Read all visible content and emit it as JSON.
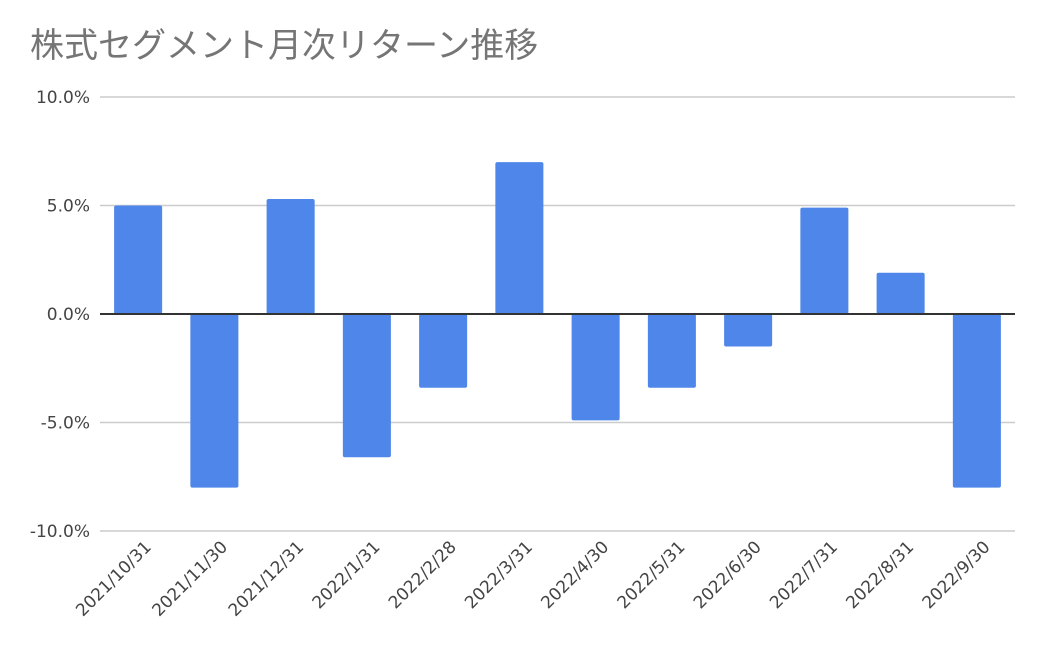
{
  "chart_data": {
    "type": "bar",
    "title": "株式セグメント月次リターン推移",
    "xlabel": "",
    "ylabel": "",
    "categories": [
      "2021/10/31",
      "2021/11/30",
      "2021/12/31",
      "2022/1/31",
      "2022/2/28",
      "2022/3/31",
      "2022/4/30",
      "2022/5/31",
      "2022/6/30",
      "2022/7/31",
      "2022/8/31",
      "2022/9/30"
    ],
    "values": [
      5.0,
      -8.0,
      5.3,
      -6.6,
      -3.4,
      7.0,
      -4.9,
      -3.4,
      -1.5,
      4.9,
      1.9,
      -8.0
    ],
    "value_unit": "percent",
    "ylim": [
      -10,
      10
    ],
    "yticks": [
      "-10.0%",
      "-5.0%",
      "0.0%",
      "5.0%",
      "10.0%"
    ],
    "ytick_values": [
      -10,
      -5,
      0,
      5,
      10
    ],
    "grid": true,
    "legend": "none",
    "bar_color": "#4f86ea"
  }
}
